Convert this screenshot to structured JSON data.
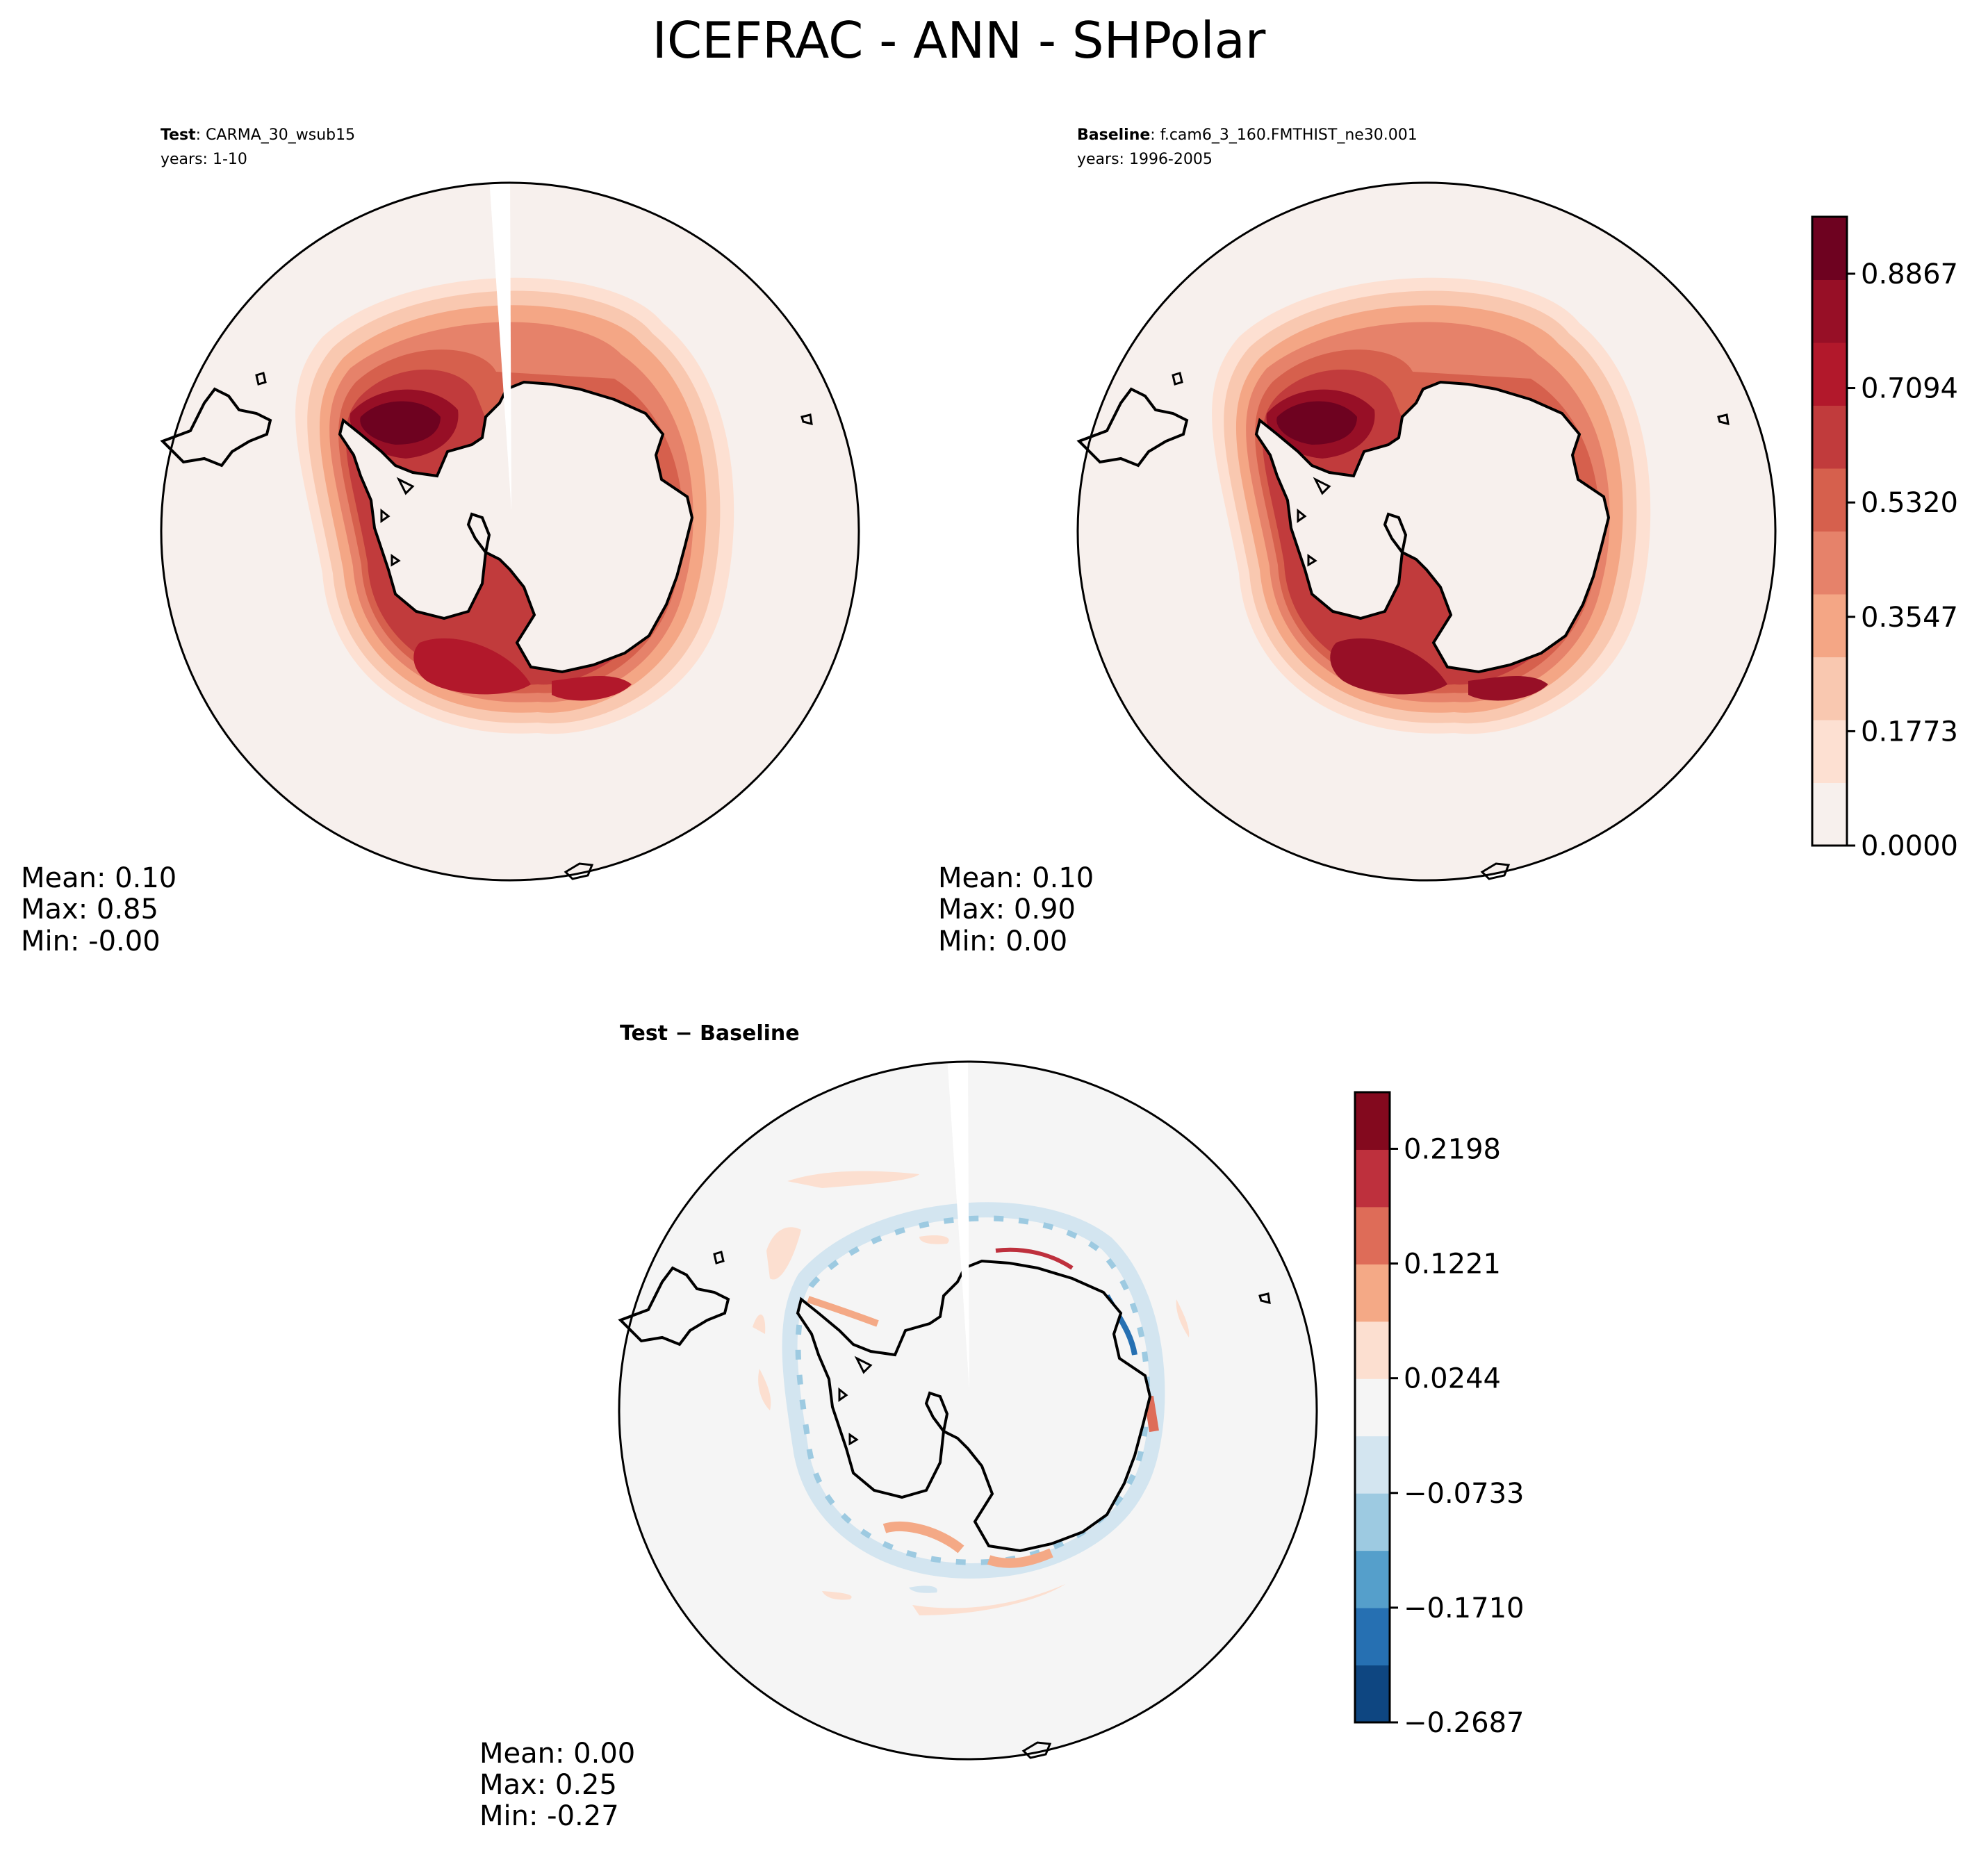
{
  "figure": {
    "title": "ICEFRAC - ANN - SHPolar"
  },
  "panels": {
    "test": {
      "label_bold": "Test",
      "label_rest": ": CARMA_30_wsub15",
      "years": "years: 1-10",
      "stats": [
        "Mean:  0.10",
        "Max:  0.85",
        "Min: -0.00"
      ]
    },
    "baseline": {
      "label_bold": "Baseline",
      "label_rest": ": f.cam6_3_160.FMTHIST_ne30.001",
      "years": "years: 1996-2005",
      "stats": [
        "Mean:  0.10",
        "Max:  0.90",
        "Min:  0.00"
      ]
    },
    "diff": {
      "label": "Test − Baseline",
      "stats": [
        "Mean:  0.00",
        "Max:  0.25",
        "Min: -0.27"
      ]
    }
  },
  "colorbars": {
    "main": {
      "ticks": [
        "0.0000",
        "0.1773",
        "0.3547",
        "0.5320",
        "0.7094",
        "0.8867"
      ],
      "colors": [
        "#f7f0ed",
        "#fde0d2",
        "#f9c8b0",
        "#f4a685",
        "#e6826a",
        "#d6604d",
        "#c13b3c",
        "#b2182b",
        "#970f26",
        "#6e0220"
      ]
    },
    "diff": {
      "ticks": [
        "−0.2687",
        "−0.1710",
        "−0.0733",
        "0.0244",
        "0.1221",
        "0.2198"
      ],
      "colors": [
        "#0e4681",
        "#2670b2",
        "#559fcb",
        "#9dcae1",
        "#d3e5f0",
        "#f5f5f5",
        "#fcdfd0",
        "#f4a986",
        "#de6c58",
        "#be303d",
        "#83091e"
      ]
    }
  },
  "chart_data": [
    {
      "type": "heatmap",
      "title": "ICEFRAC - ANN - SHPolar",
      "panel": "Test: CARMA_30_wsub15",
      "years": "years: 1-10",
      "projection": "south-polar stereographic",
      "colorbar_ticks": [
        0.0,
        0.1773,
        0.3547,
        0.532,
        0.7094,
        0.8867
      ],
      "colorbar_range": [
        0.0,
        0.975
      ],
      "colormap": "RdBu_r",
      "mean": 0.1,
      "max": 0.85,
      "min": -0.0
    },
    {
      "type": "heatmap",
      "panel": "Baseline: f.cam6_3_160.FMTHIST_ne30.001",
      "years": "years: 1996-2005",
      "projection": "south-polar stereographic",
      "colorbar_ticks": [
        0.0,
        0.1773,
        0.3547,
        0.532,
        0.7094,
        0.8867
      ],
      "colorbar_range": [
        0.0,
        0.975
      ],
      "colormap": "RdBu_r",
      "mean": 0.1,
      "max": 0.9,
      "min": 0.0
    },
    {
      "type": "heatmap",
      "panel": "Test − Baseline",
      "projection": "south-polar stereographic",
      "colorbar_ticks": [
        -0.2687,
        -0.171,
        -0.0733,
        0.0244,
        0.1221,
        0.2198
      ],
      "colorbar_range": [
        -0.2687,
        0.268
      ],
      "colormap": "RdBu_r",
      "mean": 0.0,
      "max": 0.25,
      "min": -0.27
    }
  ]
}
